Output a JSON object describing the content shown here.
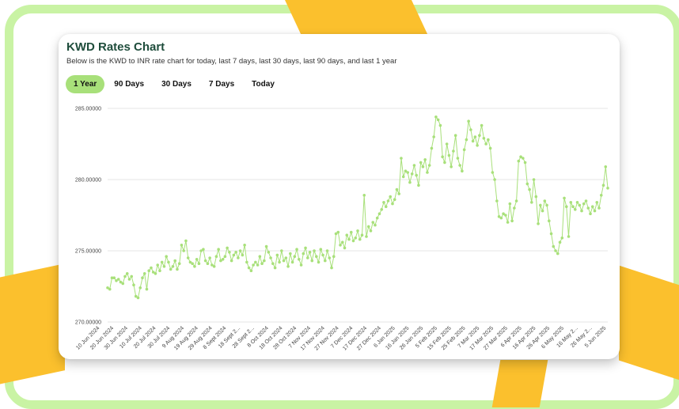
{
  "title": "KWD Rates Chart",
  "subtitle": "Below is the KWD to INR rate chart for today, last 7 days, last 30 days, last 90 days, and last 1 year",
  "tabs": [
    {
      "label": "1 Year",
      "active": true
    },
    {
      "label": "90 Days",
      "active": false
    },
    {
      "label": "30 Days",
      "active": false
    },
    {
      "label": "7 Days",
      "active": false
    },
    {
      "label": "Today",
      "active": false
    }
  ],
  "colors": {
    "accent": "#a8e07a",
    "line": "#a8e07a",
    "title": "#1f4d3c",
    "frame": "#c9f3a4",
    "decoration": "#fbc02d"
  },
  "chart_data": {
    "type": "line",
    "series": [
      {
        "values": [
          272.4,
          272.3,
          273.1,
          273.1,
          272.9,
          273.0,
          272.8,
          272.7,
          273.2,
          273.4,
          273.0,
          273.2,
          272.6,
          271.8,
          271.7,
          272.4,
          273.1,
          273.4,
          272.3,
          273.6,
          273.8,
          273.5,
          273.4,
          274.0,
          273.6,
          274.2,
          273.9,
          274.6,
          274.2,
          273.7,
          273.9,
          274.3,
          273.7,
          274.1,
          275.4,
          275.0,
          275.7,
          274.5,
          274.2,
          274.1,
          273.9,
          274.4,
          274.1,
          275.0,
          275.1,
          274.3,
          274.1,
          274.5,
          274.0,
          273.9,
          274.6,
          275.1,
          274.3,
          274.4,
          274.6,
          275.2,
          274.9,
          274.3,
          274.7,
          274.9,
          274.5,
          275.0,
          274.7,
          275.4,
          274.2,
          273.8,
          273.6,
          274.0,
          274.2,
          274.0,
          274.6,
          274.1,
          274.3,
          275.3,
          274.9,
          274.5,
          274.1,
          273.8,
          274.7,
          274.2,
          275.0,
          274.3,
          274.5,
          273.9,
          274.8,
          274.2,
          274.6,
          275.1,
          274.4,
          274.0,
          274.8,
          275.2,
          274.5,
          274.9,
          274.3,
          275.0,
          274.6,
          274.2,
          275.1,
          274.7,
          274.3,
          275.0,
          274.5,
          273.8,
          274.6,
          276.2,
          276.3,
          275.4,
          275.6,
          275.2,
          276.1,
          275.8,
          276.3,
          275.7,
          275.9,
          276.4,
          275.8,
          276.1,
          278.9,
          276.0,
          276.7,
          276.4,
          277.0,
          276.8,
          277.3,
          277.6,
          277.9,
          278.4,
          278.1,
          278.5,
          278.8,
          278.3,
          278.6,
          279.3,
          279.0,
          281.5,
          280.2,
          280.6,
          280.5,
          279.8,
          280.4,
          281.0,
          280.3,
          279.6,
          281.2,
          280.9,
          281.4,
          280.5,
          281.0,
          282.2,
          283.0,
          284.4,
          284.2,
          283.8,
          281.6,
          281.2,
          282.5,
          281.7,
          280.9,
          282.0,
          283.1,
          281.5,
          281.0,
          280.6,
          282.1,
          282.8,
          284.1,
          283.5,
          282.7,
          283.0,
          282.4,
          283.1,
          283.8,
          282.9,
          282.5,
          282.8,
          282.2,
          280.5,
          280.0,
          278.5,
          277.4,
          277.3,
          277.6,
          277.5,
          277.0,
          278.3,
          277.1,
          278.0,
          278.5,
          281.3,
          281.6,
          281.5,
          281.2,
          279.7,
          279.3,
          278.4,
          280.0,
          278.8,
          276.9,
          278.2,
          277.8,
          278.5,
          278.2,
          277.1,
          276.2,
          275.3,
          275.0,
          274.8,
          275.6,
          275.9,
          278.7,
          278.1,
          276.0,
          278.4,
          278.1,
          277.9,
          278.4,
          278.2,
          277.8,
          278.3,
          278.5,
          278.0,
          277.6,
          278.1,
          277.8,
          278.4,
          278.0,
          278.9,
          279.6,
          280.9,
          279.4
        ]
      }
    ],
    "x_ticks": [
      "10 Jun 2024",
      "20 Jun 2024",
      "30 Jun 2024",
      "10 Jul 2024",
      "20 Jul 2024",
      "30 Jul 2024",
      "9 Aug 2024",
      "19 Aug 2024",
      "29 Aug 2024",
      "8 Sept 2024",
      "18 Sept 2...",
      "28 Sept 2...",
      "8 Oct 2024",
      "18 Oct 2024",
      "28 Oct 2024",
      "7 Nov 2024",
      "17 Nov 2024",
      "27 Nov 2024",
      "7 Dec 2024",
      "17 Dec 2024",
      "27 Dec 2024",
      "6 Jan 2025",
      "16 Jan 2025",
      "26 Jan 2025",
      "5 Feb 2025",
      "15 Feb 2025",
      "25 Feb 2025",
      "7 Mar 2025",
      "17 Mar 2025",
      "27 Mar 2025",
      "6 Apr 2025",
      "16 Apr 2025",
      "26 Apr 2025",
      "6 May 2025",
      "16 May 2...",
      "26 May 2...",
      "5 Jun 2025"
    ],
    "y_ticks": [
      "270.00000",
      "275.00000",
      "280.00000",
      "285.00000"
    ],
    "ylim": [
      270,
      285
    ],
    "grid": true,
    "legend": "none"
  }
}
